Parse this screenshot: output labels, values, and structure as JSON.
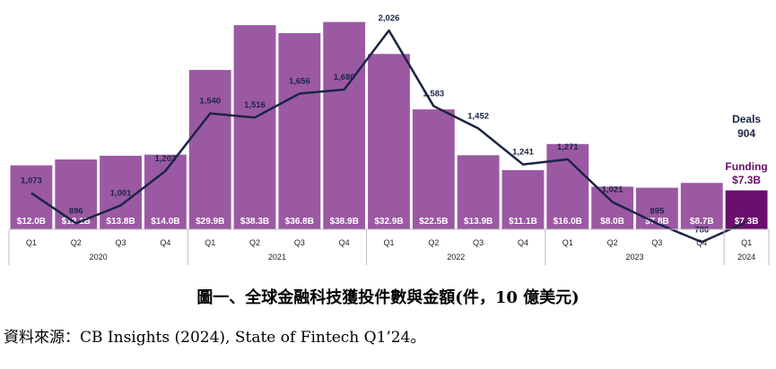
{
  "chart_data": {
    "type": "bar",
    "categories": [
      "Q1",
      "Q2",
      "Q3",
      "Q4",
      "Q1",
      "Q2",
      "Q3",
      "Q4",
      "Q1",
      "Q2",
      "Q3",
      "Q4",
      "Q1",
      "Q2",
      "Q3",
      "Q4",
      "Q1"
    ],
    "years": [
      {
        "label": "2020",
        "quarters": 4
      },
      {
        "label": "2021",
        "quarters": 4
      },
      {
        "label": "2022",
        "quarters": 4
      },
      {
        "label": "2023",
        "quarters": 4
      },
      {
        "label": "2024",
        "quarters": 1
      }
    ],
    "series": [
      {
        "name": "Funding",
        "type": "bar",
        "values": [
          12.0,
          13.1,
          13.8,
          14.0,
          29.9,
          38.3,
          36.8,
          38.9,
          32.9,
          22.5,
          13.9,
          11.1,
          16.0,
          8.0,
          7.8,
          8.7,
          7.3
        ],
        "labels": [
          "$12.0B",
          "$13.1B",
          "$13.8B",
          "$14.0B",
          "$29.9B",
          "$38.3B",
          "$36.8B",
          "$38.9B",
          "$32.9B",
          "$22.5B",
          "$13.9B",
          "$11.1B",
          "$16.0B",
          "$8.0B",
          "$7.8B",
          "$8.7B",
          "$7.3B"
        ]
      },
      {
        "name": "Deals",
        "type": "line",
        "values": [
          1073,
          896,
          1001,
          1203,
          1540,
          1516,
          1656,
          1680,
          2026,
          1583,
          1452,
          1241,
          1271,
          1021,
          895,
          786,
          904
        ],
        "labels": [
          "1,073",
          "896",
          "1,001",
          "1,203",
          "1,540",
          "1,516",
          "1,656",
          "1,680",
          "2,026",
          "1,583",
          "1,452",
          "1,241",
          "1,271",
          "1,021",
          "895",
          "786",
          "904"
        ]
      }
    ],
    "legend": {
      "deals_name": "Deals",
      "deals_value": "904",
      "funding_name": "Funding",
      "funding_value": "$7.3B"
    },
    "bar_ylim": [
      0,
      40
    ],
    "line_ylim": [
      0,
      2200
    ],
    "colors": {
      "bar": "#9b59a3",
      "bar_latest": "#6b0f6e",
      "line": "#1b2545",
      "funding_legend": "#6b0f6e",
      "deals_legend": "#1b2545"
    }
  },
  "caption": "圖一、全球金融科技獲投件數與金額(件，10 億美元)",
  "source": "資料來源：CB Insights (2024), State of Fintech Q1’24。"
}
